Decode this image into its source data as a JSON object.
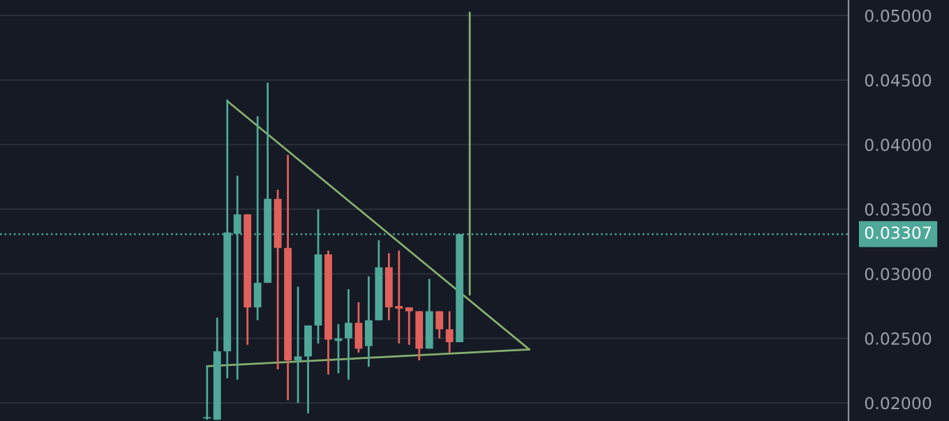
{
  "chart_data": {
    "type": "candlestick",
    "categories": [
      null,
      null,
      null,
      null,
      null,
      null,
      null,
      null,
      null,
      null,
      null,
      null,
      null,
      null,
      null,
      null,
      null,
      null,
      null,
      null,
      null,
      null,
      null,
      null,
      null,
      null,
      null,
      null,
      null,
      null,
      null,
      null,
      null,
      null,
      null,
      null,
      null,
      null,
      null,
      null,
      null,
      null,
      null,
      null,
      null,
      null,
      null,
      null,
      null,
      null,
      null,
      null,
      null,
      null,
      null,
      null,
      null,
      null,
      null,
      null,
      null,
      null,
      null,
      null,
      null,
      null,
      null,
      null,
      null,
      null,
      null,
      null,
      null,
      null,
      null,
      null,
      null,
      null,
      null,
      null,
      null,
      null,
      null,
      null
    ],
    "ohlc": [
      null,
      null,
      null,
      null,
      null,
      null,
      null,
      null,
      null,
      null,
      null,
      null,
      null,
      null,
      null,
      null,
      null,
      null,
      null,
      null,
      [
        0.0188,
        0.0229,
        0.0187,
        0.0189
      ],
      [
        0.0187,
        0.0266,
        0.0187,
        0.024
      ],
      [
        0.024,
        0.0435,
        0.0219,
        0.0332
      ],
      [
        0.0331,
        0.0376,
        0.0218,
        0.0346
      ],
      [
        0.0346,
        0.0346,
        0.0245,
        0.0274
      ],
      [
        0.0274,
        0.0422,
        0.0264,
        0.0293
      ],
      [
        0.0293,
        0.0448,
        0.0293,
        0.0358
      ],
      [
        0.0358,
        0.0365,
        0.0226,
        0.032
      ],
      [
        0.032,
        0.0392,
        0.0202,
        0.0233
      ],
      [
        0.0233,
        0.029,
        0.02,
        0.0236
      ],
      [
        0.0236,
        0.026,
        0.0192,
        0.026
      ],
      [
        0.026,
        0.035,
        0.0246,
        0.0315
      ],
      [
        0.0315,
        0.0318,
        0.0222,
        0.0249
      ],
      [
        0.0248,
        0.0261,
        0.0223,
        0.025
      ],
      [
        0.025,
        0.0288,
        0.0218,
        0.0262
      ],
      [
        0.0262,
        0.0278,
        0.0239,
        0.0242
      ],
      [
        0.0244,
        0.0298,
        0.0228,
        0.0264
      ],
      [
        0.0264,
        0.0326,
        0.0264,
        0.0305
      ],
      [
        0.0305,
        0.0316,
        0.0264,
        0.0274
      ],
      [
        0.0275,
        0.0318,
        0.0246,
        0.0273
      ],
      [
        0.0274,
        0.0274,
        0.0245,
        0.0271
      ],
      [
        0.0271,
        0.0271,
        0.0233,
        0.0242
      ],
      [
        0.0242,
        0.0296,
        0.0242,
        0.0271
      ],
      [
        0.0271,
        0.0271,
        0.025,
        0.0257
      ],
      [
        0.0257,
        0.0271,
        0.0239,
        0.0247
      ],
      [
        0.0247,
        0.0331,
        0.0247,
        0.03307
      ],
      null,
      null,
      null,
      null,
      null,
      null,
      null,
      null,
      null,
      null,
      null,
      null,
      null,
      null,
      null,
      null,
      null,
      null,
      null,
      null,
      null,
      null,
      null,
      null,
      null,
      null,
      null,
      null,
      null,
      null,
      null,
      null,
      null,
      null,
      null,
      null,
      null,
      null
    ],
    "colors": [
      null,
      null,
      null,
      null,
      null,
      null,
      null,
      null,
      null,
      null,
      null,
      null,
      null,
      null,
      null,
      null,
      null,
      null,
      null,
      null,
      "#4fa89a",
      "#4fa89a",
      "#4fa89a",
      "#4fa89a",
      "#e0615b",
      "#4fa89a",
      "#4fa89a",
      "#e0615b",
      "#e0615b",
      "#4fa89a",
      "#4fa89a",
      "#4fa89a",
      "#e0615b",
      "#4fa89a",
      "#4fa89a",
      "#e0615b",
      "#4fa89a",
      "#4fa89a",
      "#e0615b",
      "#e0615b",
      "#e0615b",
      "#e0615b",
      "#4fa89a",
      "#e0615b",
      "#e0615b",
      "#4fa89a",
      null,
      null,
      null,
      null,
      null,
      null,
      null,
      null,
      null,
      null,
      null,
      null,
      null,
      null,
      null,
      null,
      null,
      null,
      null,
      null,
      null,
      null,
      null,
      null,
      null,
      null,
      null,
      null,
      null,
      null,
      null,
      null,
      null,
      null,
      null,
      null,
      null,
      null
    ],
    "ylim": [
      0.0186,
      0.0512
    ],
    "yticks": [
      {
        "value": 0.02,
        "label": "0.02000"
      },
      {
        "value": 0.025,
        "label": "0.02500"
      },
      {
        "value": 0.03,
        "label": "0.03000"
      },
      {
        "value": 0.035,
        "label": "0.03500"
      },
      {
        "value": 0.04,
        "label": "0.04000"
      },
      {
        "value": 0.045,
        "label": "0.04500"
      },
      {
        "value": 0.05,
        "label": "0.05000"
      }
    ],
    "ref_lines": [
      {
        "axis": "y",
        "value": 0.03307,
        "label": "0.03307",
        "color": "#4fa89a",
        "line_style": "dotted"
      }
    ],
    "tick_labels": "y",
    "grid": "y"
  }
}
